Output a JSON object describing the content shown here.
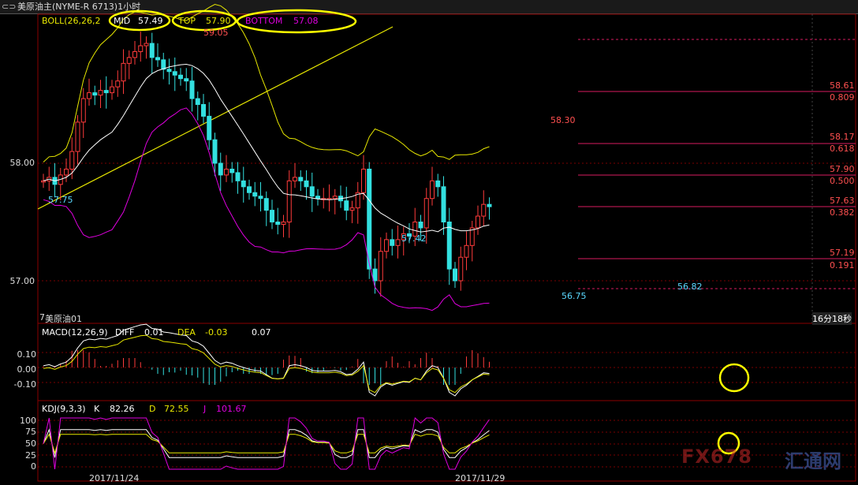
{
  "window": {
    "nav_icons": "⊂⊃",
    "title": "美原油主(NYME-R 6713)1小时"
  },
  "boll": {
    "label": "BOLL(26,26,2",
    "mid_label": "MID",
    "mid_value": "57.49",
    "top_label": "TOP",
    "top_value": "57.90",
    "bottom_label": "BOTTOM",
    "bottom_value": "57.08"
  },
  "price_axis": {
    "ticks": [
      "58.00",
      "57.00"
    ]
  },
  "fib_levels": [
    {
      "price": "58.61",
      "ratio": "0.809"
    },
    {
      "price": "58.17",
      "ratio": "0.618"
    },
    {
      "price": "57.90",
      "ratio": "0.500"
    },
    {
      "price": "57.63",
      "ratio": "0.382"
    },
    {
      "price": "57.19",
      "ratio": "0.191"
    }
  ],
  "price_annotations": {
    "high_left": "59.05",
    "low_left": "57.75",
    "low_mid": "57.42",
    "high_mid": "58.30",
    "low_right_a": "56.75",
    "low_right_b": "56.82"
  },
  "symbol_label": "美原油01",
  "symbol_prefix": "7",
  "countdown": "16分18秒",
  "macd": {
    "label": "MACD(12,26,9)",
    "diff_label": "DIFF",
    "diff_value": "0.01",
    "dea_label": "DEA",
    "dea_value": "-0.03",
    "macd_value": "0.07",
    "ticks": [
      "0.10",
      "0.00",
      "-0.10"
    ]
  },
  "kdj": {
    "label": "KDJ(9,3,3)",
    "k_label": "K",
    "k_value": "82.26",
    "d_label": "D",
    "d_value": "72.55",
    "j_label": "J",
    "j_value": "101.67",
    "ticks": [
      "100",
      "75",
      "50",
      "25",
      "0"
    ]
  },
  "dates": [
    "2017/11/24",
    "2017/11/29"
  ],
  "watermark": {
    "text": "FX678",
    "cn": "汇通网"
  },
  "colors": {
    "up": "#ff3b3b",
    "down": "#33e0e0",
    "mid": "#ffffff",
    "upper": "#e8e800",
    "lower": "#e000e0",
    "highlight": "#ffff00",
    "fib": "#d81b60",
    "price_label": "#ff5050",
    "low_label": "#5ad8ff"
  },
  "chart_data": {
    "type": "candlestick",
    "timeframe": "1 hour",
    "indicators": [
      "BOLL(26,26,2)",
      "MACD(12,26,9)",
      "KDJ(9,3,3)"
    ],
    "boll_last": {
      "mid": 57.49,
      "top": 57.9,
      "bottom": 57.08
    },
    "marked_highs": [
      59.05,
      58.3
    ],
    "marked_lows": [
      57.75,
      57.42,
      56.75,
      56.82
    ],
    "fibonacci": [
      {
        "ratio": 0.809,
        "price": 58.61
      },
      {
        "ratio": 0.618,
        "price": 58.17
      },
      {
        "ratio": 0.5,
        "price": 57.9
      },
      {
        "ratio": 0.382,
        "price": 57.63
      },
      {
        "ratio": 0.191,
        "price": 57.19
      }
    ],
    "y_ticks": [
      58.0,
      57.0
    ],
    "close_path": [
      57.85,
      57.88,
      57.82,
      57.9,
      57.95,
      58.1,
      58.35,
      58.55,
      58.6,
      58.58,
      58.62,
      58.6,
      58.65,
      58.7,
      58.85,
      58.9,
      58.95,
      59.0,
      59.02,
      58.9,
      58.88,
      58.8,
      58.78,
      58.75,
      58.72,
      58.7,
      58.55,
      58.5,
      58.4,
      58.2,
      58.0,
      57.9,
      57.95,
      57.92,
      57.85,
      57.8,
      57.75,
      57.72,
      57.7,
      57.6,
      57.5,
      57.48,
      57.5,
      57.85,
      57.88,
      57.85,
      57.8,
      57.72,
      57.7,
      57.7,
      57.7,
      57.72,
      57.68,
      57.6,
      57.62,
      57.75,
      57.95,
      57.1,
      57.0,
      57.25,
      57.35,
      57.3,
      57.35,
      57.4,
      57.38,
      57.5,
      57.45,
      57.7,
      57.85,
      57.8,
      57.5,
      57.1,
      57.0,
      57.2,
      57.3,
      57.45,
      57.55,
      57.65,
      57.63
    ],
    "macd": {
      "diff": 0.01,
      "dea": -0.03,
      "macd": 0.07,
      "y_ticks": [
        0.1,
        0.0,
        -0.1
      ]
    },
    "kdj": {
      "k": 82.26,
      "d": 72.55,
      "j": 101.67,
      "y_ticks": [
        100,
        75,
        50,
        25,
        0
      ]
    },
    "x_labels": [
      "2017/11/24",
      "2017/11/29"
    ]
  }
}
